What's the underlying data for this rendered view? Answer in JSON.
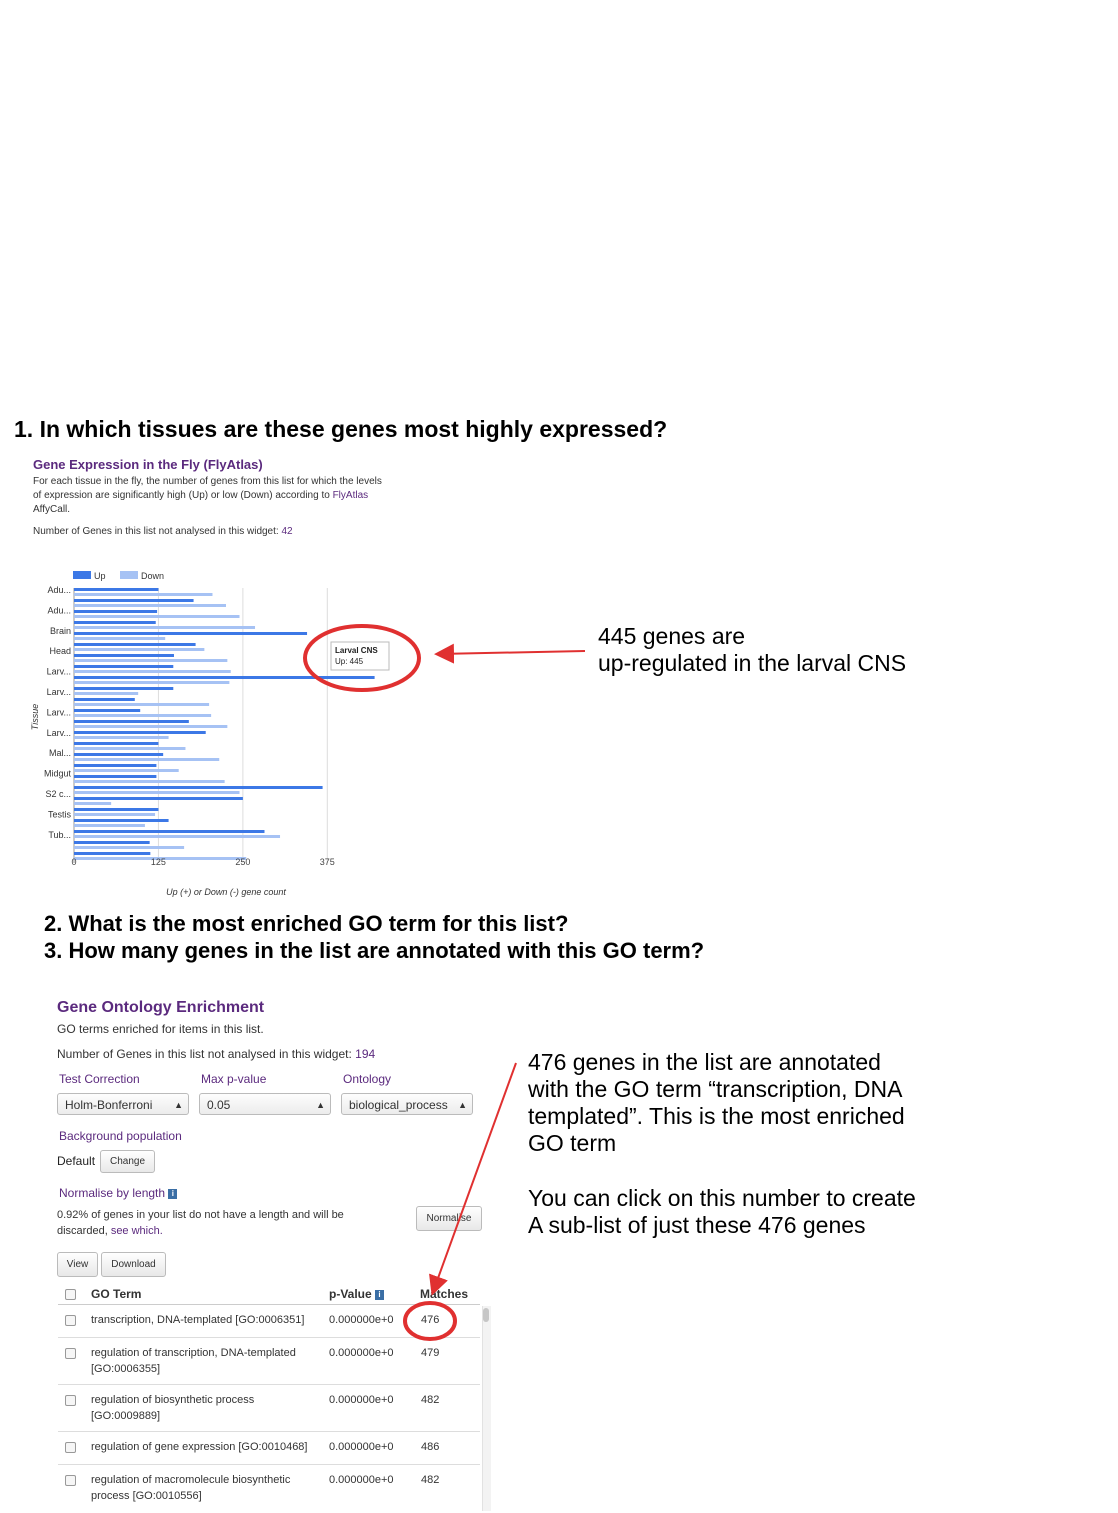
{
  "questions": {
    "q1": "1. In which tissues are these genes most highly expressed?",
    "q2": "2. What is the most enriched GO term for this list?",
    "q3": "3. How many genes in the list are annotated with this GO term?"
  },
  "flyatlas": {
    "title": "Gene Expression in the Fly (FlyAtlas)",
    "desc_line1": "For each tissue in the fly, the number of genes from this list for which the levels",
    "desc_line2_a": "of expression are significantly high (Up) or low (Down) according to ",
    "desc_link": "FlyAtlas",
    "desc_line3": "AffyCall.",
    "not_analysed_label": "Number of Genes in this list not analysed in this widget: ",
    "not_analysed_value": "42"
  },
  "chart_data": {
    "type": "bar",
    "orientation": "horizontal",
    "xlabel": "Up (+) or Down (-) gene count",
    "ylabel": "Tissue",
    "xlim": [
      0,
      490
    ],
    "xticks": [
      "0",
      "125",
      "250",
      "375"
    ],
    "legend": [
      "Up",
      "Down"
    ],
    "legend_placement": "top-left",
    "colors": {
      "up": "#3c78e6",
      "down": "#a6c2f4"
    },
    "tick_labels": [
      "Adu...",
      "Adu...",
      "Brain",
      "Head",
      "Larv...",
      "Larv...",
      "Larv...",
      "Larv...",
      "Mal...",
      "Midgut",
      "S2 c...",
      "Testis",
      "Tub..."
    ],
    "series": [
      {
        "name": "Up",
        "values": [
          125,
          177,
          123,
          121,
          345,
          180,
          148,
          147,
          445,
          147,
          90,
          98,
          170,
          195,
          125,
          132,
          122,
          122,
          368,
          250,
          125,
          140,
          282,
          112,
          113
        ]
      },
      {
        "name": "Down",
        "values": [
          205,
          225,
          245,
          268,
          135,
          193,
          227,
          232,
          230,
          95,
          200,
          203,
          227,
          140,
          165,
          215,
          155,
          223,
          245,
          55,
          120,
          105,
          305,
          163,
          255
        ]
      }
    ],
    "tooltip": {
      "title": "Larval CNS",
      "text": "Up: 445"
    }
  },
  "annotation1": {
    "line1": "445 genes are",
    "line2": "up-regulated in the larval CNS"
  },
  "goe": {
    "title": "Gene Ontology Enrichment",
    "subtitle": "GO terms enriched for items in this list.",
    "not_analysed_label": "Number of Genes in this list not analysed in this widget: ",
    "not_analysed_value": "194",
    "test_correction_label": "Test Correction",
    "test_correction_value": "Holm-Bonferroni",
    "max_p_label": "Max p-value",
    "max_p_value": "0.05",
    "ontology_label": "Ontology",
    "ontology_value": "biological_process",
    "background_label": "Background population",
    "background_default": "Default",
    "change_button": "Change",
    "normalise_label": "Normalise by length",
    "normalise_text_line1": "0.92% of genes in your list do not have a length and will be",
    "normalise_text_line2_a": "discarded, ",
    "normalise_link": "see which.",
    "normalise_button": "Normalise",
    "view_button": "View",
    "download_button": "Download",
    "col_term": "GO Term",
    "col_p": "p-Value",
    "col_matches": "Matches",
    "rows": [
      {
        "term_line1": "transcription, DNA-templated [GO:0006351]",
        "term_line2": "",
        "p": "0.000000e+0",
        "matches": "476"
      },
      {
        "term_line1": "regulation of transcription, DNA-templated",
        "term_line2": "[GO:0006355]",
        "p": "0.000000e+0",
        "matches": "479"
      },
      {
        "term_line1": "regulation of biosynthetic process",
        "term_line2": "[GO:0009889]",
        "p": "0.000000e+0",
        "matches": "482"
      },
      {
        "term_line1": "regulation of gene expression [GO:0010468]",
        "term_line2": "",
        "p": "0.000000e+0",
        "matches": "486"
      },
      {
        "term_line1": "regulation of macromolecule biosynthetic",
        "term_line2": "process [GO:0010556]",
        "p": "0.000000e+0",
        "matches": "482"
      }
    ]
  },
  "annotation2": {
    "line1": "476 genes in the list are annotated",
    "line2": "with the GO term “transcription, DNA",
    "line3": "templated”.  This is the most enriched",
    "line4": "GO term",
    "line5": "You can click on this number to create",
    "line6": "A sub-list of just these 476 genes"
  },
  "icons": {
    "info": "i",
    "select_arrow": "▲▼"
  }
}
